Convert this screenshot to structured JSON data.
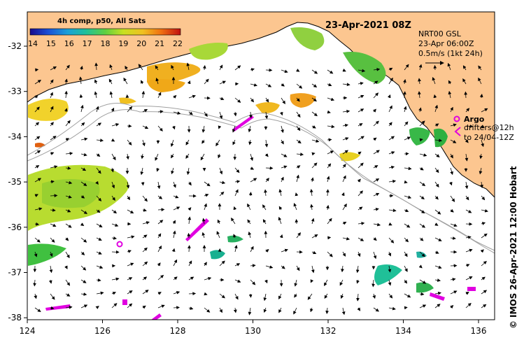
{
  "map": {
    "title": "23-Apr-2021 08Z",
    "lon_ticks": [
      "124",
      "126",
      "128",
      "130",
      "132",
      "134",
      "136"
    ],
    "lat_ticks": [
      "-32",
      "-33",
      "-34",
      "-35",
      "-36",
      "-37",
      "-38"
    ],
    "colors": {
      "land": "#fcc690",
      "ocean": "#ffffff",
      "frame": "#000000",
      "coast": "#000000",
      "bathymetry": "#a0a0a0",
      "argo": "#e000e0"
    }
  },
  "colorbar": {
    "title": "4h comp, p50, All Sats",
    "ticks": [
      "14",
      "15",
      "16",
      "17",
      "18",
      "19",
      "20",
      "21",
      "22"
    ],
    "range": [
      14,
      22
    ]
  },
  "current_info": {
    "line1": "NRT00 GSL",
    "line2": "23-Apr 06:00Z",
    "line3": "0.5m/s (1kt 24h)"
  },
  "argo_legend": {
    "label": "Argo",
    "line1": "drifters@12h",
    "line2": "to 24/04-12Z"
  },
  "credit": "IMOS 26-Apr-2021 12:00 Hobart",
  "copyright": "©"
}
